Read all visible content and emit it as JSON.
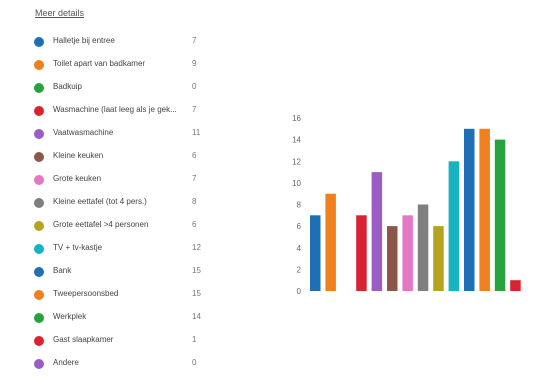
{
  "details_link": "Meer details",
  "chart_data": {
    "type": "bar",
    "categories": [
      "Halletje bij entree",
      "Toilet apart van badkamer",
      "Badkuip",
      "Wasmachine (laat leeg als je gek...",
      "Vaatwasmachine",
      "Kleine keuken",
      "Grote keuken",
      "Kleine eettafel (tot 4 pers.)",
      "Grote eettafel >4 personen",
      "TV + tv-kastje",
      "Bank",
      "Tweepersoonsbed",
      "Werkplek",
      "Gast slaapkamer",
      "Andere"
    ],
    "values": [
      7,
      9,
      0,
      7,
      11,
      6,
      7,
      8,
      6,
      12,
      15,
      15,
      14,
      1,
      0
    ],
    "colors": [
      "#1f6fb5",
      "#f07f1d",
      "#27a33d",
      "#d92332",
      "#9b5cc6",
      "#8c564b",
      "#e377c2",
      "#7f7f7f",
      "#b7a41e",
      "#17b3bf",
      "#1f6fb5",
      "#f07f1d",
      "#27a33d",
      "#d92332",
      "#9b5cc6"
    ],
    "yticks": [
      0,
      2,
      4,
      6,
      8,
      10,
      12,
      14,
      16
    ],
    "ylim": [
      0,
      16
    ],
    "grid": false,
    "legend_position": "left"
  }
}
